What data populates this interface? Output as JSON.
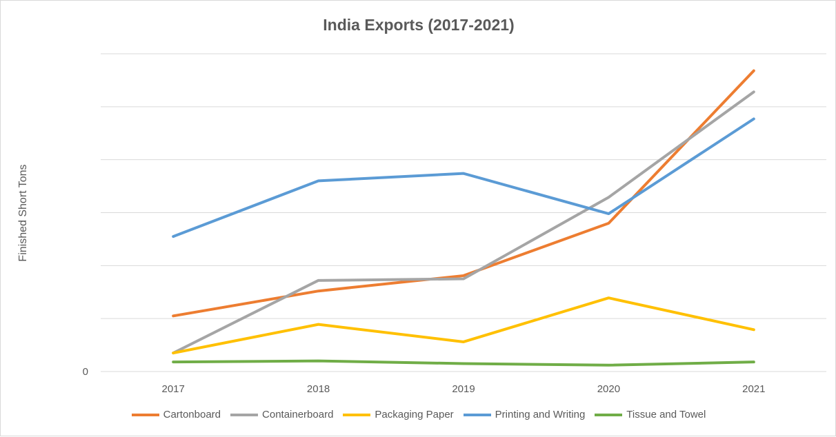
{
  "chart_data": {
    "type": "line",
    "title": "India Exports (2017-2021)",
    "xlabel": "",
    "ylabel": "Finished Short Tons",
    "categories": [
      "2017",
      "2018",
      "2019",
      "2020",
      "2021"
    ],
    "y_tick_labels": [
      "0"
    ],
    "ylim": [
      0,
      6
    ],
    "grid": true,
    "legend_position": "bottom",
    "series": [
      {
        "name": "Cartonboard",
        "color": "#ED7D31",
        "values": [
          1.05,
          1.52,
          1.81,
          2.8,
          5.68
        ]
      },
      {
        "name": "Containerboard",
        "color": "#A5A5A5",
        "values": [
          0.35,
          1.72,
          1.75,
          3.29,
          5.28
        ]
      },
      {
        "name": "Packaging Paper",
        "color": "#FFC000",
        "values": [
          0.35,
          0.89,
          0.56,
          1.39,
          0.79
        ]
      },
      {
        "name": "Printing and Writing",
        "color": "#5B9BD5",
        "values": [
          2.55,
          3.6,
          3.74,
          2.98,
          4.77
        ]
      },
      {
        "name": "Tissue and Towel",
        "color": "#70AD47",
        "values": [
          0.18,
          0.2,
          0.15,
          0.12,
          0.18
        ]
      }
    ]
  }
}
